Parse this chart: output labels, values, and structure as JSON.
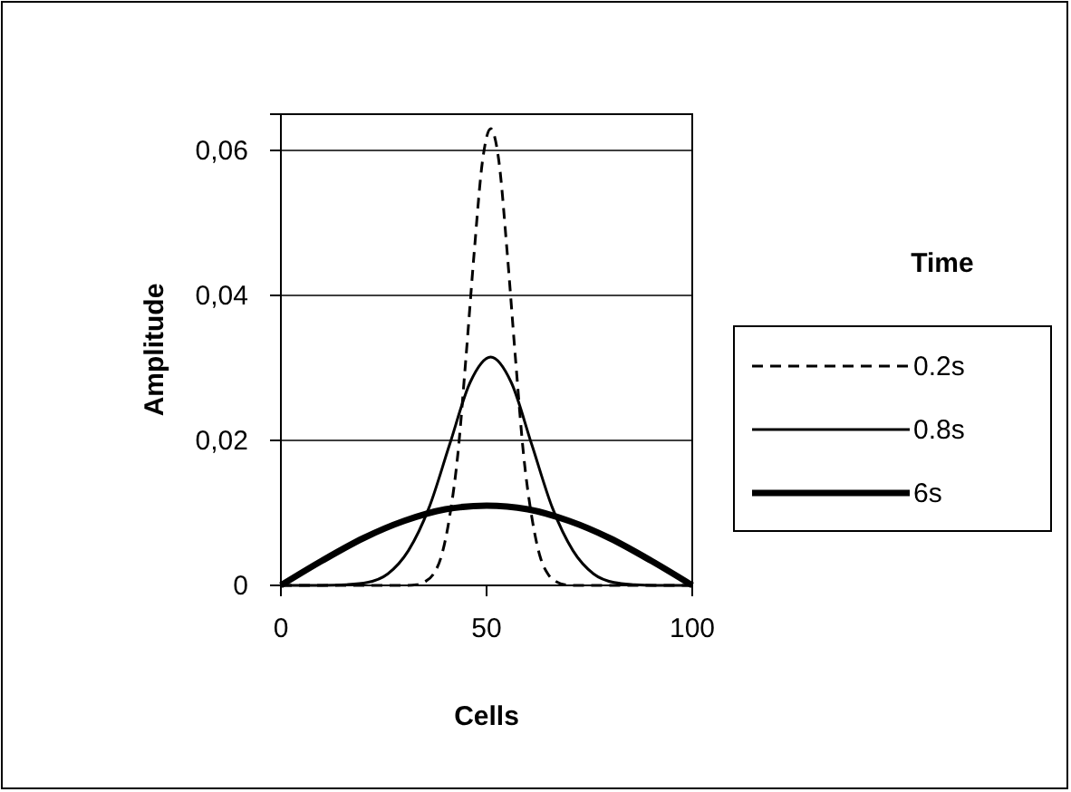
{
  "chart_data": {
    "type": "line",
    "xlabel": "Cells",
    "ylabel": "Amplitude",
    "legend_title": "Time",
    "legend": "right",
    "grid": "y",
    "marker": "none",
    "xlim": [
      0,
      100
    ],
    "xticks": [
      0,
      50,
      100
    ],
    "ylim": [
      0,
      0.065
    ],
    "yticks": [
      {
        "value": 0,
        "label": "0"
      },
      {
        "value": 0.02,
        "label": "0,02"
      },
      {
        "value": 0.04,
        "label": "0,04"
      },
      {
        "value": 0.06,
        "label": "0,06"
      }
    ],
    "series": [
      {
        "name": "0.2s",
        "color": "#000000",
        "line_style": "dashed",
        "x": [
          0,
          30,
          33,
          35,
          37,
          39,
          41,
          43,
          45,
          47,
          49,
          51,
          53,
          55,
          57,
          59,
          61,
          63,
          65,
          67,
          69,
          72,
          100
        ],
        "values": [
          0,
          0,
          0.0001,
          0.0005,
          0.0015,
          0.004,
          0.0094,
          0.018,
          0.0315,
          0.046,
          0.0585,
          0.063,
          0.0585,
          0.046,
          0.0315,
          0.018,
          0.0094,
          0.004,
          0.0015,
          0.0005,
          0.0001,
          0,
          0
        ]
      },
      {
        "name": "0.8s",
        "color": "#000000",
        "line_style": "solid",
        "x": [
          0,
          10,
          16,
          21,
          26,
          31,
          36,
          41,
          46,
          51,
          56,
          61,
          66,
          71,
          76,
          81,
          86,
          91,
          100
        ],
        "values": [
          0,
          0,
          0.0001,
          0.0004,
          0.0016,
          0.0048,
          0.0107,
          0.0194,
          0.028,
          0.0315,
          0.028,
          0.0194,
          0.0107,
          0.0048,
          0.0016,
          0.0004,
          0.0001,
          0,
          0
        ]
      },
      {
        "name": "6s",
        "color": "#000000",
        "line_style": "solid",
        "x": [
          0,
          10,
          20,
          30,
          40,
          50,
          60,
          70,
          80,
          90,
          100
        ],
        "values": [
          0,
          0.0034,
          0.0065,
          0.0089,
          0.0105,
          0.011,
          0.0105,
          0.0089,
          0.0065,
          0.0034,
          0
        ]
      }
    ]
  }
}
